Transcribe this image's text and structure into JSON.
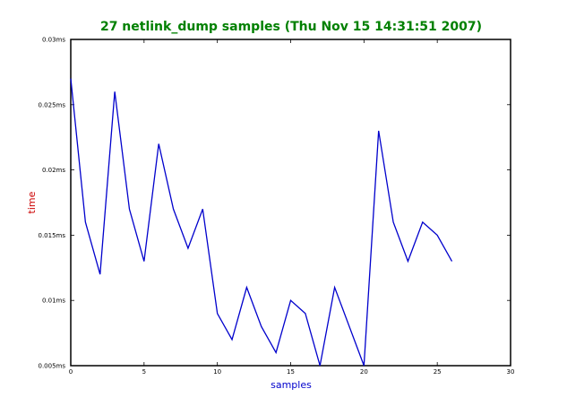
{
  "chart_data": {
    "type": "line",
    "title": "27 netlink_dump samples (Thu Nov 15 14:31:51 2007)",
    "xlabel": "samples",
    "ylabel": "time",
    "xlim": [
      0,
      30
    ],
    "ylim": [
      0.005,
      0.03
    ],
    "x_ticks": [
      0,
      5,
      10,
      15,
      20,
      25,
      30
    ],
    "x_tick_labels": [
      "0",
      "5",
      "10",
      "15",
      "20",
      "25",
      "30"
    ],
    "y_ticks": [
      0.005,
      0.01,
      0.015,
      0.02,
      0.025,
      0.03
    ],
    "y_tick_labels": [
      "0.005ms",
      "0.01ms",
      "0.015ms",
      "0.02ms",
      "0.025ms",
      "0.03ms"
    ],
    "grid": false,
    "colors": {
      "title": "#008000",
      "ylabel": "#cc0000",
      "xlabel": "#0000cc",
      "line": "#0000cc",
      "axes": "#000000"
    },
    "series": [
      {
        "x": [
          0,
          1,
          2,
          3,
          4,
          5,
          6,
          7,
          8,
          9,
          10,
          11,
          12,
          13,
          14,
          15,
          16,
          17,
          18,
          19,
          20,
          21,
          22,
          23,
          24,
          25,
          26
        ],
        "values": [
          0.027,
          0.016,
          0.012,
          0.026,
          0.017,
          0.013,
          0.022,
          0.017,
          0.014,
          0.017,
          0.009,
          0.007,
          0.011,
          0.008,
          0.006,
          0.01,
          0.009,
          0.005,
          0.011,
          0.008,
          0.005,
          0.023,
          0.016,
          0.013,
          0.016,
          0.015,
          0.013
        ]
      }
    ]
  }
}
